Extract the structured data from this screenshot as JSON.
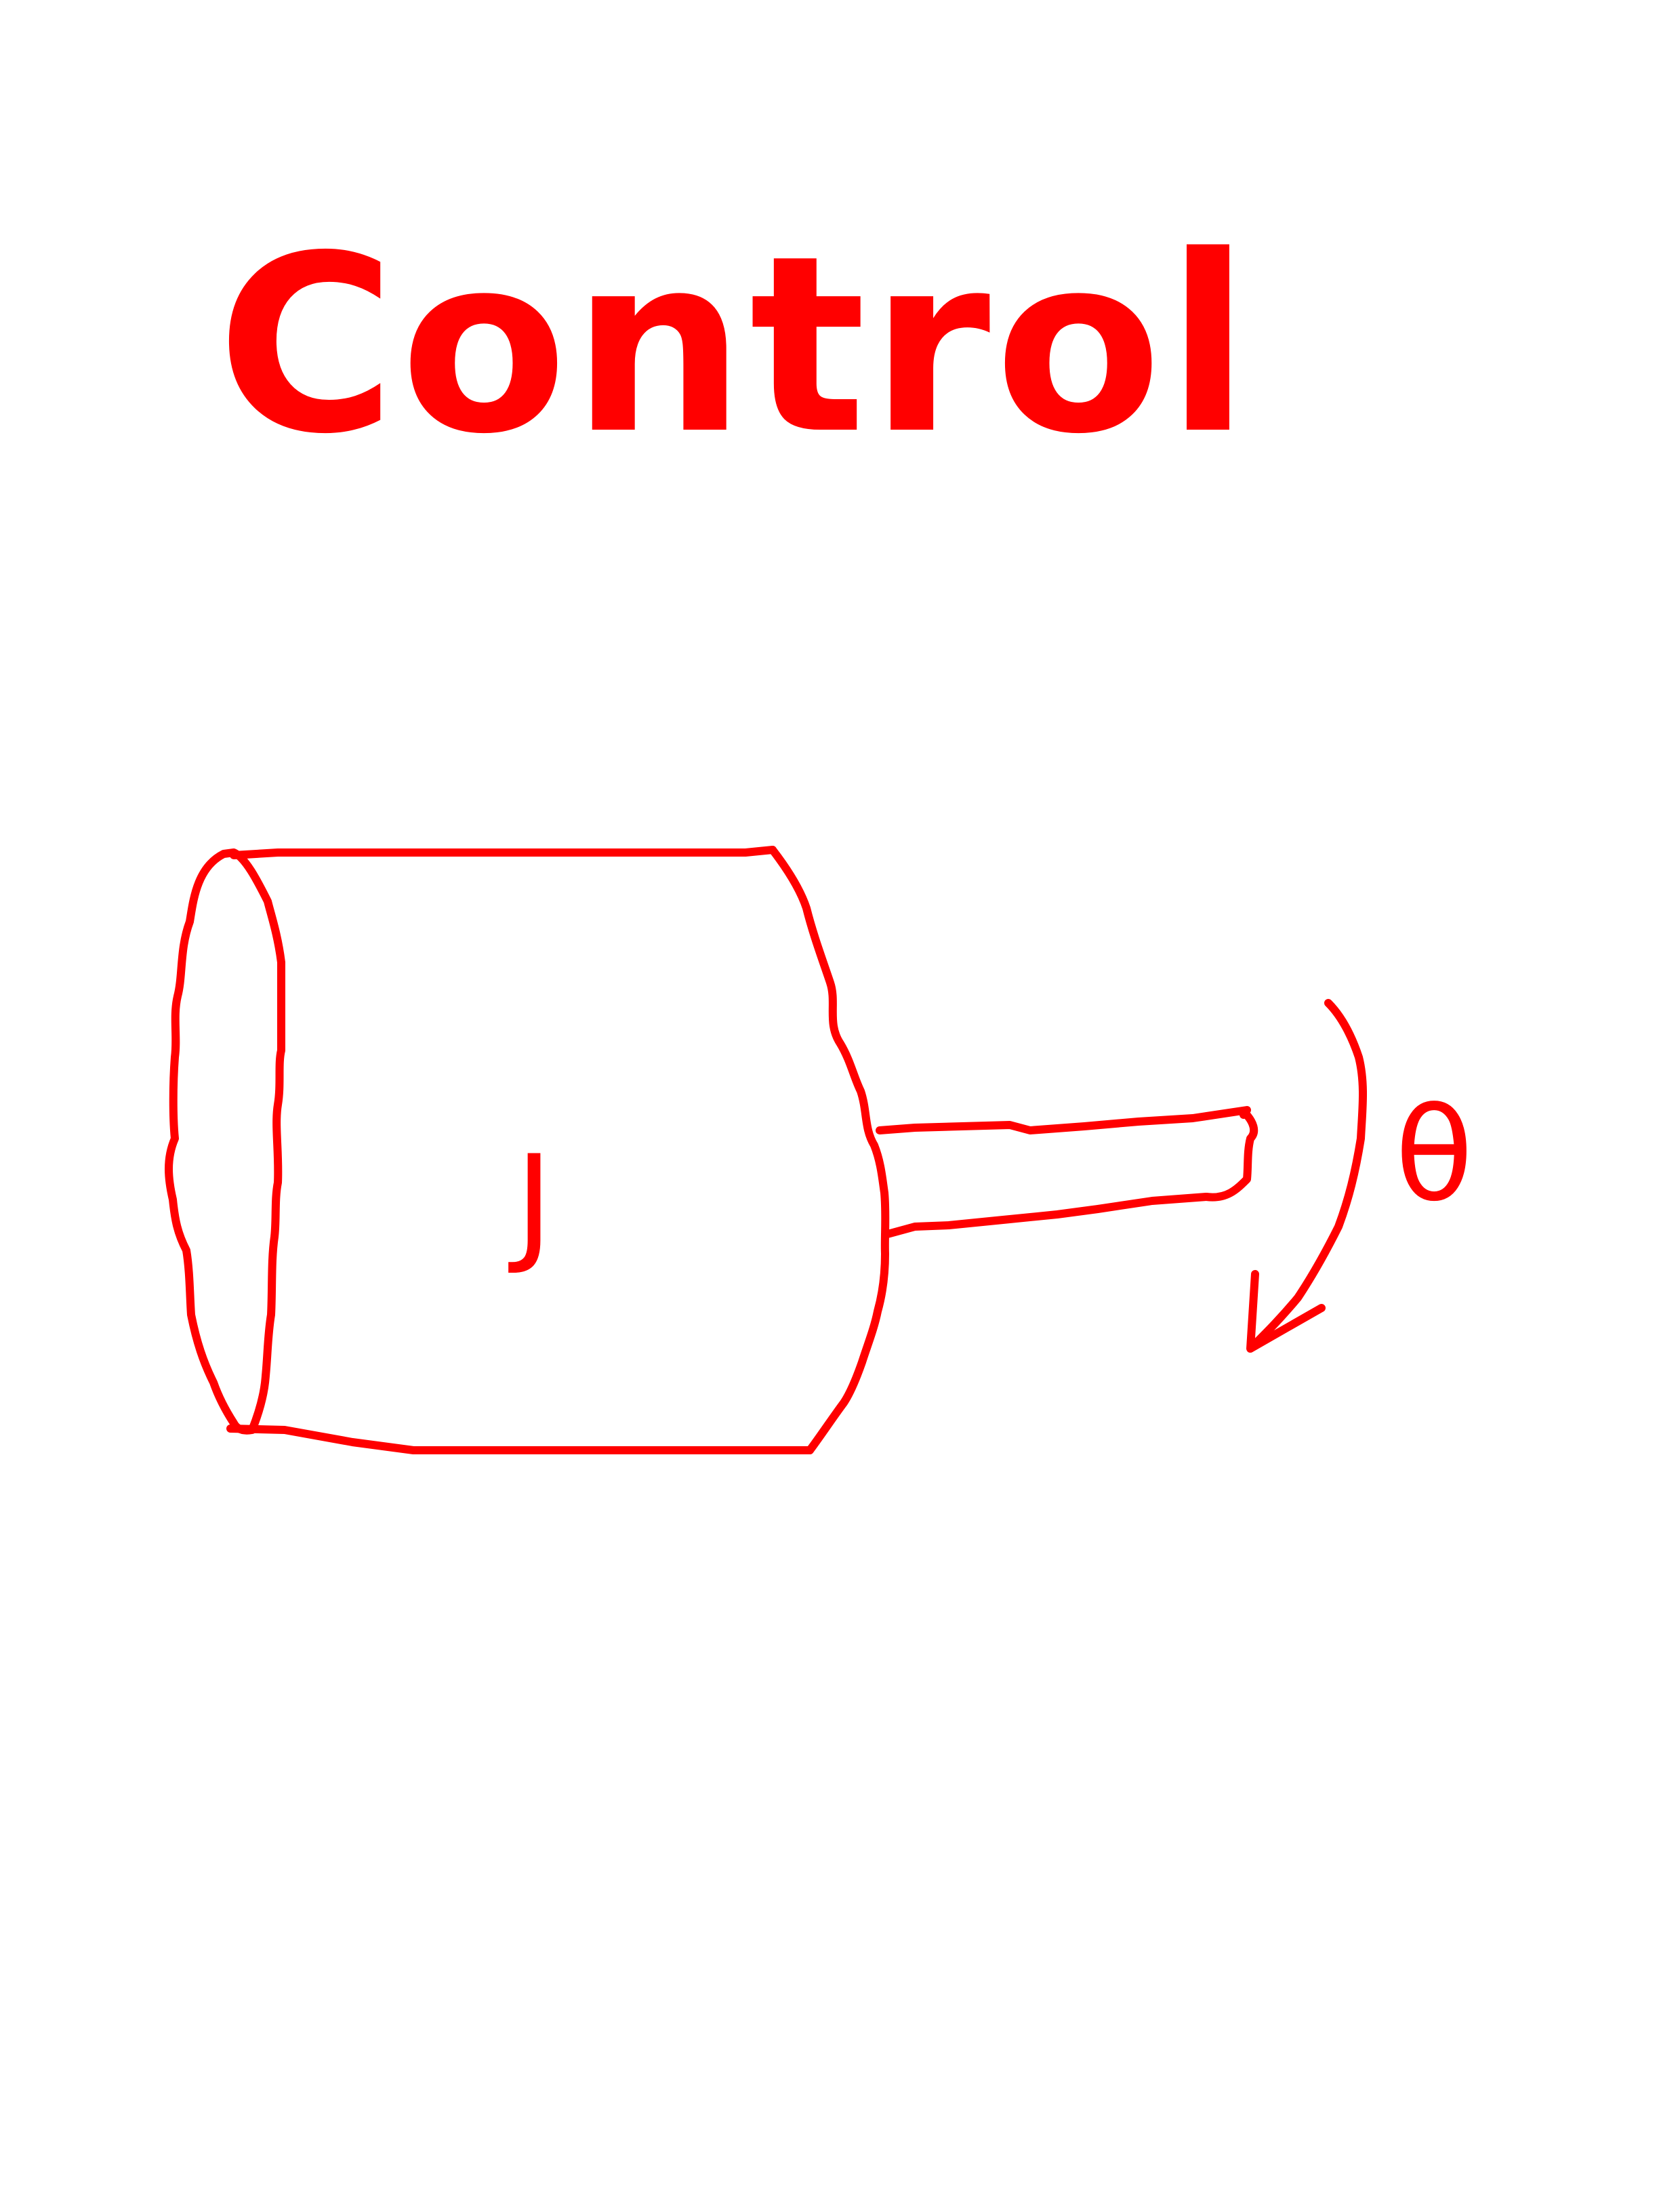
{
  "title": "Control",
  "diagram": {
    "inertia_label": "J",
    "angle_label": "θ",
    "direction": "clockwise"
  },
  "colors": {
    "ink": "#ff0000",
    "background": "#ffffff"
  }
}
